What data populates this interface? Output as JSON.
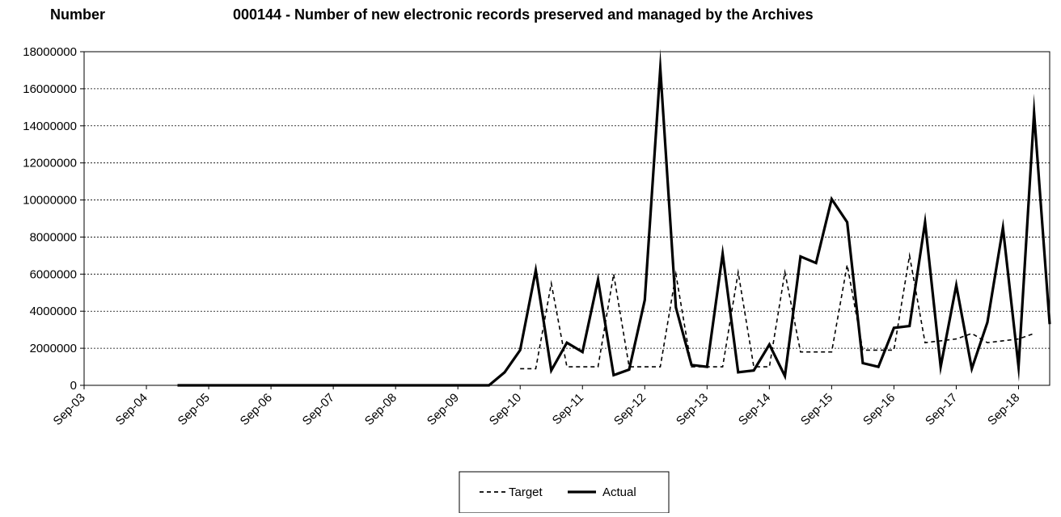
{
  "chart_data": {
    "type": "line",
    "title": "000144 - Number of new electronic records preserved and managed by the Archives",
    "ylabel": "Number",
    "xlabel": "",
    "ylim": [
      0,
      18000000
    ],
    "x_range": [
      "2003-09",
      "2019-03"
    ],
    "y_ticks": [
      0,
      2000000,
      4000000,
      6000000,
      8000000,
      10000000,
      12000000,
      14000000,
      16000000,
      18000000
    ],
    "x_tick_labels": [
      "Sep-03",
      "Sep-04",
      "Sep-05",
      "Sep-06",
      "Sep-07",
      "Sep-08",
      "Sep-09",
      "Sep-10",
      "Sep-11",
      "Sep-12",
      "Sep-13",
      "Sep-14",
      "Sep-15",
      "Sep-16",
      "Sep-17",
      "Sep-18"
    ],
    "grid": "horizontal dotted",
    "legend_position": "bottom-center",
    "series": [
      {
        "name": "Target",
        "line_style": "dashed",
        "color": "#000000",
        "points": [
          [
            "2010-09",
            900000
          ],
          [
            "2010-12",
            900000
          ],
          [
            "2011-03",
            5500000
          ],
          [
            "2011-06",
            1000000
          ],
          [
            "2011-09",
            1000000
          ],
          [
            "2011-12",
            1000000
          ],
          [
            "2012-03",
            6000000
          ],
          [
            "2012-06",
            1000000
          ],
          [
            "2012-09",
            1000000
          ],
          [
            "2012-12",
            1000000
          ],
          [
            "2013-03",
            6000000
          ],
          [
            "2013-06",
            1000000
          ],
          [
            "2013-09",
            1000000
          ],
          [
            "2013-12",
            1000000
          ],
          [
            "2014-03",
            6100000
          ],
          [
            "2014-06",
            1000000
          ],
          [
            "2014-09",
            1000000
          ],
          [
            "2014-12",
            6100000
          ],
          [
            "2015-03",
            1800000
          ],
          [
            "2015-06",
            1800000
          ],
          [
            "2015-09",
            1800000
          ],
          [
            "2015-12",
            6500000
          ],
          [
            "2016-03",
            1900000
          ],
          [
            "2016-06",
            1900000
          ],
          [
            "2016-09",
            1900000
          ],
          [
            "2016-12",
            7000000
          ],
          [
            "2017-03",
            2300000
          ],
          [
            "2017-06",
            2400000
          ],
          [
            "2017-09",
            2500000
          ],
          [
            "2017-12",
            2800000
          ],
          [
            "2018-03",
            2300000
          ],
          [
            "2018-06",
            2400000
          ],
          [
            "2018-09",
            2500000
          ],
          [
            "2018-12",
            2800000
          ]
        ]
      },
      {
        "name": "Actual",
        "line_style": "solid",
        "color": "#000000",
        "points": [
          [
            "2005-03",
            0
          ],
          [
            "2005-06",
            0
          ],
          [
            "2005-09",
            0
          ],
          [
            "2005-12",
            0
          ],
          [
            "2006-03",
            0
          ],
          [
            "2006-06",
            0
          ],
          [
            "2006-09",
            0
          ],
          [
            "2006-12",
            0
          ],
          [
            "2007-03",
            0
          ],
          [
            "2007-06",
            0
          ],
          [
            "2007-09",
            0
          ],
          [
            "2007-12",
            0
          ],
          [
            "2008-03",
            0
          ],
          [
            "2008-06",
            0
          ],
          [
            "2008-09",
            0
          ],
          [
            "2008-12",
            0
          ],
          [
            "2009-03",
            0
          ],
          [
            "2009-06",
            0
          ],
          [
            "2009-09",
            0
          ],
          [
            "2009-12",
            0
          ],
          [
            "2010-03",
            0
          ],
          [
            "2010-06",
            700000
          ],
          [
            "2010-09",
            1900000
          ],
          [
            "2010-12",
            6200000
          ],
          [
            "2011-03",
            800000
          ],
          [
            "2011-06",
            2300000
          ],
          [
            "2011-09",
            1800000
          ],
          [
            "2011-12",
            5700000
          ],
          [
            "2012-03",
            550000
          ],
          [
            "2012-06",
            850000
          ],
          [
            "2012-09",
            4600000
          ],
          [
            "2012-12",
            17100000
          ],
          [
            "2013-03",
            4200000
          ],
          [
            "2013-06",
            1100000
          ],
          [
            "2013-09",
            1000000
          ],
          [
            "2013-12",
            7100000
          ],
          [
            "2014-03",
            700000
          ],
          [
            "2014-06",
            800000
          ],
          [
            "2014-09",
            2200000
          ],
          [
            "2014-12",
            500000
          ],
          [
            "2015-03",
            6950000
          ],
          [
            "2015-06",
            6600000
          ],
          [
            "2015-09",
            10050000
          ],
          [
            "2015-12",
            8800000
          ],
          [
            "2016-03",
            1200000
          ],
          [
            "2016-06",
            1000000
          ],
          [
            "2016-09",
            3100000
          ],
          [
            "2016-12",
            3200000
          ],
          [
            "2017-03",
            8800000
          ],
          [
            "2017-06",
            1000000
          ],
          [
            "2017-09",
            5400000
          ],
          [
            "2017-12",
            900000
          ],
          [
            "2018-03",
            3400000
          ],
          [
            "2018-06",
            8500000
          ],
          [
            "2018-09",
            1000000
          ],
          [
            "2018-12",
            14700000
          ],
          [
            "2019-03",
            3300000
          ]
        ]
      }
    ]
  }
}
